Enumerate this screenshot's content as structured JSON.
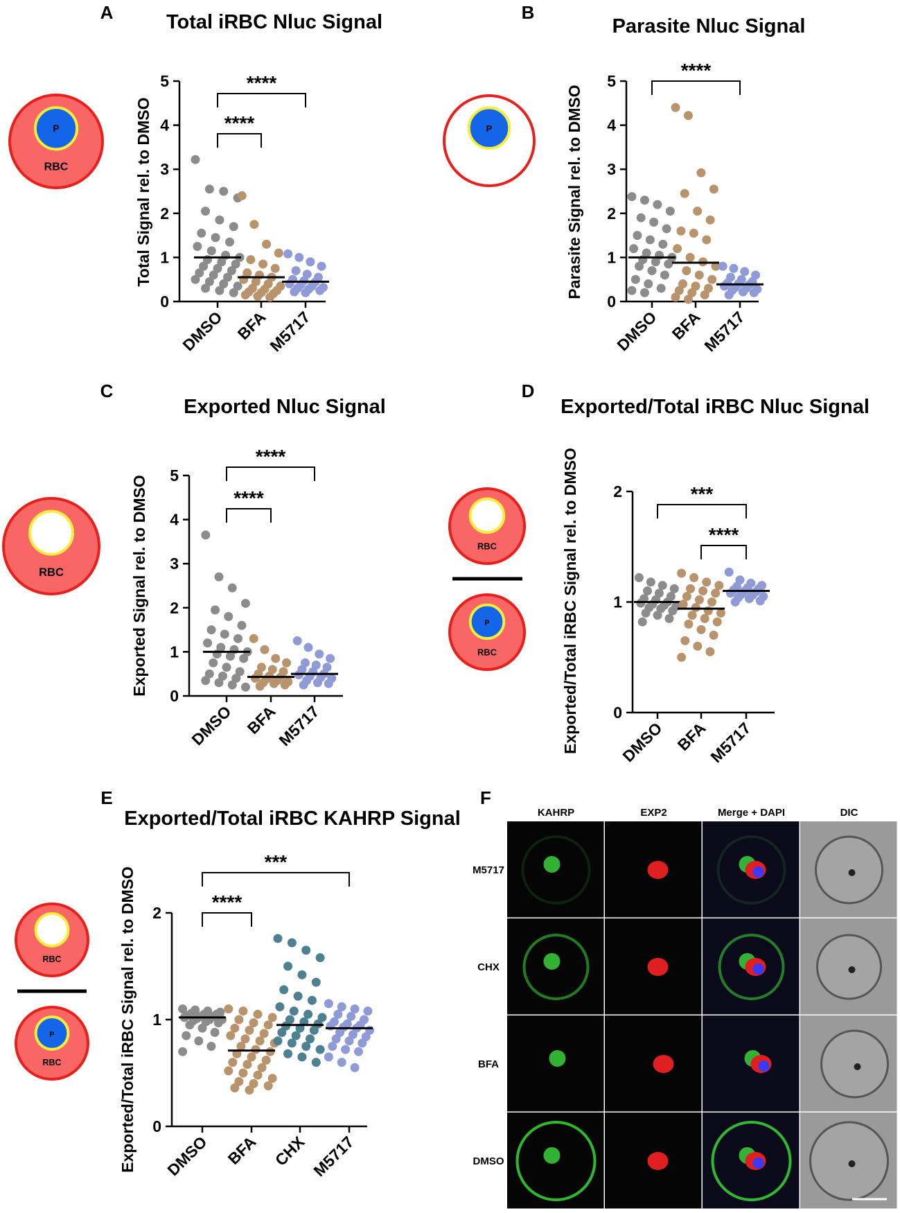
{
  "chart_data": [
    {
      "type": "strip",
      "panel_label": "A",
      "title": "Total iRBC Nluc Signal",
      "y_label": "Total Signal rel. to DMSO",
      "categories": [
        "DMSO",
        "BFA",
        "M5717"
      ],
      "colors": [
        "#8c8c8c",
        "#b8936b",
        "#8f9bd6"
      ],
      "points": [
        [
          3.22,
          2.55,
          2.5,
          2.35,
          2.05,
          1.85,
          1.7,
          1.55,
          1.45,
          1.35,
          1.25,
          1.15,
          1.05,
          1.0,
          0.95,
          0.9,
          0.85,
          0.8,
          0.75,
          0.7,
          0.65,
          0.6,
          0.55,
          0.5,
          0.45,
          0.4,
          0.35,
          0.3,
          0.25,
          0.2
        ],
        [
          2.4,
          1.75,
          1.3,
          1.1,
          0.95,
          0.85,
          0.75,
          0.65,
          0.6,
          0.55,
          0.5,
          0.45,
          0.4,
          0.35,
          0.3,
          0.28,
          0.25,
          0.22,
          0.2,
          0.18,
          0.15,
          0.12,
          0.1
        ],
        [
          1.08,
          1.0,
          0.9,
          0.8,
          0.7,
          0.62,
          0.55,
          0.5,
          0.47,
          0.44,
          0.4,
          0.38,
          0.35,
          0.32,
          0.3,
          0.28,
          0.25,
          0.22,
          0.2
        ]
      ],
      "means": [
        1.0,
        0.55,
        0.45
      ],
      "ylim": [
        0,
        5
      ],
      "yticks": [
        0,
        1,
        2,
        3,
        4,
        5
      ],
      "significance": [
        {
          "from": "DMSO",
          "to": "BFA",
          "label": "****"
        },
        {
          "from": "DMSO",
          "to": "M5717",
          "label": "****"
        }
      ],
      "cartoon": [
        {
          "filled": true,
          "parasite": "P",
          "label": "RBC"
        }
      ]
    },
    {
      "type": "strip",
      "panel_label": "B",
      "title": "Parasite Nluc Signal",
      "y_label": "Parasite Signal rel. to DMSO",
      "categories": [
        "DMSO",
        "BFA",
        "M5717"
      ],
      "colors": [
        "#8c8c8c",
        "#b8936b",
        "#8f9bd6"
      ],
      "points": [
        [
          2.38,
          2.3,
          2.2,
          2.05,
          1.9,
          1.8,
          1.65,
          1.5,
          1.4,
          1.3,
          1.2,
          1.1,
          1.05,
          1.0,
          0.95,
          0.9,
          0.85,
          0.8,
          0.7,
          0.6,
          0.5,
          0.4,
          0.3,
          0.25,
          0.2
        ],
        [
          4.4,
          4.22,
          2.92,
          2.55,
          2.45,
          2.05,
          1.85,
          1.6,
          1.55,
          1.4,
          1.2,
          1.0,
          0.9,
          0.8,
          0.7,
          0.6,
          0.5,
          0.4,
          0.35,
          0.3,
          0.25,
          0.2,
          0.15,
          0.1,
          0.05
        ],
        [
          0.8,
          0.75,
          0.68,
          0.6,
          0.55,
          0.5,
          0.45,
          0.42,
          0.4,
          0.38,
          0.35,
          0.32,
          0.3,
          0.28,
          0.25,
          0.22,
          0.2,
          0.15
        ]
      ],
      "means": [
        1.0,
        0.88,
        0.39
      ],
      "ylim": [
        0,
        5
      ],
      "yticks": [
        0,
        1,
        2,
        3,
        4,
        5
      ],
      "significance": [
        {
          "from": "DMSO",
          "to": "M5717",
          "label": "****"
        }
      ],
      "cartoon": [
        {
          "filled": false,
          "parasite": "P"
        }
      ]
    },
    {
      "type": "strip",
      "panel_label": "C",
      "title": "Exported Nluc Signal",
      "y_label": "Exported Signal rel. to DMSO",
      "categories": [
        "DMSO",
        "BFA",
        "M5717"
      ],
      "colors": [
        "#8c8c8c",
        "#b8936b",
        "#8f9bd6"
      ],
      "points": [
        [
          3.65,
          2.7,
          2.45,
          2.1,
          1.95,
          1.8,
          1.6,
          1.5,
          1.4,
          1.3,
          1.2,
          1.1,
          1.05,
          1.0,
          0.95,
          0.9,
          0.85,
          0.75,
          0.65,
          0.55,
          0.5,
          0.45,
          0.4,
          0.35,
          0.3,
          0.25,
          0.2
        ],
        [
          1.3,
          1.05,
          0.85,
          0.75,
          0.65,
          0.6,
          0.55,
          0.5,
          0.45,
          0.42,
          0.4,
          0.38,
          0.35,
          0.32,
          0.3,
          0.28,
          0.25,
          0.22
        ],
        [
          1.25,
          1.1,
          0.95,
          0.85,
          0.75,
          0.7,
          0.65,
          0.6,
          0.55,
          0.5,
          0.48,
          0.45,
          0.42,
          0.4,
          0.35,
          0.3,
          0.28,
          0.25
        ]
      ],
      "means": [
        1.0,
        0.43,
        0.5
      ],
      "ylim": [
        0,
        5
      ],
      "yticks": [
        0,
        1,
        2,
        3,
        4,
        5
      ],
      "significance": [
        {
          "from": "DMSO",
          "to": "BFA",
          "label": "****"
        },
        {
          "from": "DMSO",
          "to": "M5717",
          "label": "****"
        }
      ],
      "cartoon": [
        {
          "filled": true,
          "label": "RBC"
        }
      ]
    },
    {
      "type": "strip",
      "panel_label": "D",
      "title": "Exported/Total iRBC Nluc Signal",
      "y_label": "Exported/Total iRBC Signal rel. to DMSO",
      "categories": [
        "DMSO",
        "BFA",
        "M5717"
      ],
      "colors": [
        "#8c8c8c",
        "#b8936b",
        "#8f9bd6"
      ],
      "points": [
        [
          1.22,
          1.18,
          1.15,
          1.12,
          1.1,
          1.08,
          1.05,
          1.03,
          1.02,
          1.0,
          0.99,
          0.98,
          0.97,
          0.96,
          0.95,
          0.94,
          0.92,
          0.9,
          0.88,
          0.85,
          0.82
        ],
        [
          1.26,
          1.22,
          1.18,
          1.15,
          1.12,
          1.1,
          1.08,
          1.05,
          1.02,
          1.0,
          0.98,
          0.95,
          0.92,
          0.9,
          0.88,
          0.85,
          0.82,
          0.8,
          0.75,
          0.7,
          0.65,
          0.6,
          0.55,
          0.5
        ],
        [
          1.27,
          1.2,
          1.17,
          1.15,
          1.14,
          1.13,
          1.12,
          1.11,
          1.1,
          1.09,
          1.08,
          1.07,
          1.06,
          1.05,
          1.04,
          1.03,
          1.01,
          1.0
        ]
      ],
      "means": [
        1.0,
        0.94,
        1.1
      ],
      "ylim": [
        0,
        2
      ],
      "yticks": [
        0,
        1,
        2
      ],
      "significance": [
        {
          "from": "DMSO",
          "to": "M5717",
          "label": "***"
        },
        {
          "from": "BFA",
          "to": "M5717",
          "label": "****"
        }
      ],
      "cartoon": [
        {
          "filled": true,
          "label": "RBC"
        },
        {
          "filled": true,
          "parasite": "P",
          "label": "RBC"
        }
      ]
    },
    {
      "type": "strip",
      "panel_label": "E",
      "title": "Exported/Total iRBC KAHRP Signal",
      "y_label": "Exported/Total iRBC Signal rel. to DMSO",
      "categories": [
        "DMSO",
        "BFA",
        "CHX",
        "M5717"
      ],
      "colors": [
        "#8c8c8c",
        "#b8936b",
        "#4d8090",
        "#8f9bd6"
      ],
      "points": [
        [
          1.1,
          1.09,
          1.08,
          1.07,
          1.06,
          1.05,
          1.05,
          1.04,
          1.03,
          1.03,
          1.02,
          1.01,
          1.0,
          1.0,
          0.99,
          0.98,
          0.97,
          0.95,
          0.92,
          0.88,
          0.85,
          0.8,
          0.75,
          0.7
        ],
        [
          1.1,
          1.08,
          1.05,
          1.02,
          1.0,
          0.97,
          0.95,
          0.92,
          0.9,
          0.87,
          0.85,
          0.82,
          0.8,
          0.78,
          0.75,
          0.72,
          0.7,
          0.68,
          0.65,
          0.62,
          0.6,
          0.58,
          0.55,
          0.52,
          0.5,
          0.48,
          0.45,
          0.42,
          0.4,
          0.38,
          0.36,
          0.34
        ],
        [
          1.76,
          1.72,
          1.65,
          1.58,
          1.5,
          1.42,
          1.35,
          1.28,
          1.22,
          1.18,
          1.12,
          1.08,
          1.05,
          1.02,
          1.0,
          0.98,
          0.96,
          0.94,
          0.92,
          0.9,
          0.88,
          0.85,
          0.82,
          0.8,
          0.78,
          0.75,
          0.72,
          0.68,
          0.65,
          0.6
        ],
        [
          1.15,
          1.12,
          1.1,
          1.08,
          1.05,
          1.03,
          1.0,
          0.98,
          0.96,
          0.95,
          0.94,
          0.93,
          0.92,
          0.9,
          0.88,
          0.86,
          0.84,
          0.82,
          0.8,
          0.78,
          0.75,
          0.72,
          0.7,
          0.65,
          0.6,
          0.55
        ]
      ],
      "means": [
        1.02,
        0.71,
        0.95,
        0.92
      ],
      "ylim": [
        0,
        2
      ],
      "yticks": [
        0,
        1,
        2
      ],
      "significance": [
        {
          "from": "DMSO",
          "to": "BFA",
          "label": "****"
        },
        {
          "from": "DMSO",
          "to": "M5717",
          "label": "***"
        }
      ],
      "cartoon": [
        {
          "filled": true,
          "label": "RBC"
        },
        {
          "filled": true,
          "parasite": "P",
          "label": "RBC"
        }
      ]
    }
  ],
  "micrograph": {
    "panel_label": "F",
    "columns": [
      "KAHRP",
      "EXP2",
      "Merge + DAPI",
      "DIC"
    ],
    "rows": [
      "M5717",
      "CHX",
      "BFA",
      "DMSO"
    ]
  }
}
